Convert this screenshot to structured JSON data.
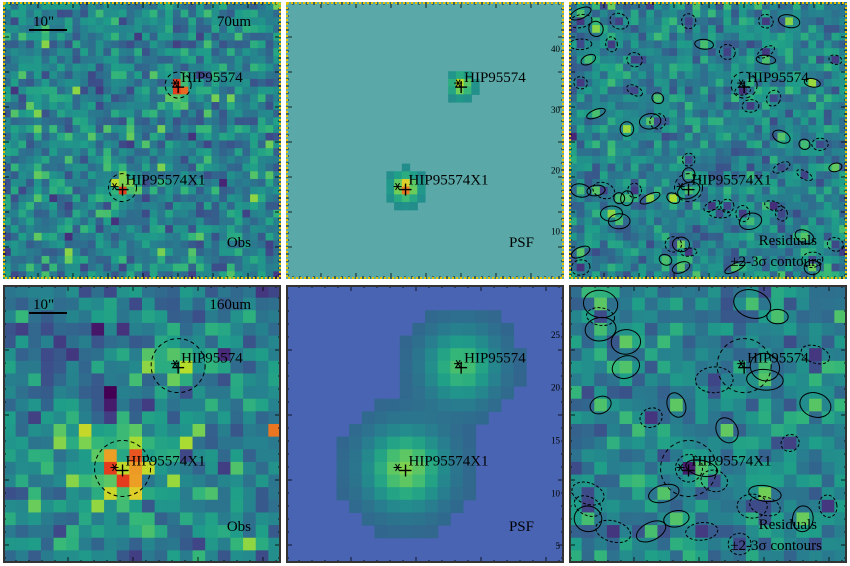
{
  "figure": {
    "rows": [
      {
        "band": "70um",
        "scalebar": "10\"",
        "panels": [
          {
            "id": "r1-obs",
            "kind": "obs",
            "corner_label": "Obs",
            "sources": [
              "HIP95574",
              "HIP95574X1"
            ]
          },
          {
            "id": "r1-psf",
            "kind": "psf",
            "corner_label": "PSF",
            "sources": [
              "HIP95574",
              "HIP95574X1"
            ],
            "y_ticks": [
              "40",
              "30",
              "20",
              "10"
            ]
          },
          {
            "id": "r1-res",
            "kind": "residuals",
            "corner_label_1": "Residuals",
            "corner_label_2": "±2-3σ contours",
            "sources": [
              "HIP95574",
              "HIP95574X1"
            ]
          }
        ]
      },
      {
        "band": "160um",
        "scalebar": "10\"",
        "panels": [
          {
            "id": "r2-obs",
            "kind": "obs",
            "corner_label": "Obs",
            "sources": [
              "HIP95574",
              "HIP95574X1"
            ]
          },
          {
            "id": "r2-psf",
            "kind": "psf",
            "corner_label": "PSF",
            "sources": [
              "HIP95574",
              "HIP95574X1"
            ],
            "y_ticks": [
              "25",
              "20",
              "15",
              "10",
              "5"
            ]
          },
          {
            "id": "r2-res",
            "kind": "residuals",
            "corner_label_1": "Residuals",
            "corner_label_2": "±2-3σ contours",
            "sources": [
              "HIP95574",
              "HIP95574X1"
            ]
          }
        ]
      }
    ],
    "colors": {
      "frame_row1": "#e8c200",
      "frame_row2": "#333333",
      "psf_bg_row1": "#5aa9a8",
      "psf_bg_row2": "#4a64b4"
    }
  }
}
